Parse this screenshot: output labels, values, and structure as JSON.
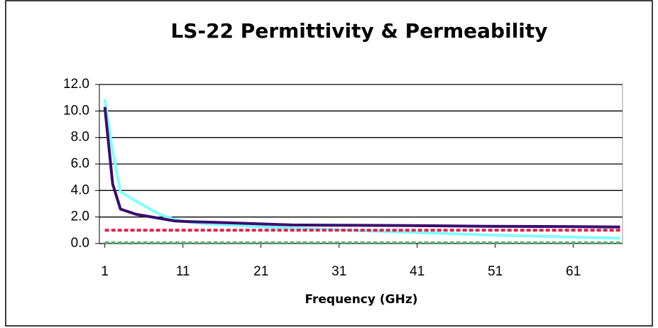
{
  "chart_data": {
    "type": "line",
    "title": "LS-22 Permittivity & Permeability",
    "x_label": "Frequency (GHz)",
    "x": [
      1,
      2,
      3,
      5,
      8,
      10,
      12,
      15,
      20,
      25,
      30,
      40,
      50,
      60,
      67
    ],
    "series": [
      {
        "color": "#80ffff",
        "style": "solid",
        "values": [
          10.9,
          7.0,
          3.9,
          3.2,
          2.2,
          1.8,
          1.6,
          1.45,
          1.3,
          1.15,
          1.05,
          0.85,
          0.65,
          0.5,
          0.4
        ]
      },
      {
        "color": "#3a0d6e",
        "style": "solid",
        "values": [
          10.3,
          4.5,
          2.6,
          2.2,
          1.9,
          1.7,
          1.65,
          1.6,
          1.5,
          1.4,
          1.38,
          1.35,
          1.3,
          1.28,
          1.25
        ]
      },
      {
        "color": "#e0204a",
        "style": "dashed",
        "values": [
          1.0,
          1.0,
          1.0,
          1.0,
          1.0,
          1.0,
          1.0,
          1.0,
          1.0,
          1.0,
          1.0,
          1.0,
          1.0,
          1.0,
          1.0
        ]
      },
      {
        "color": "#5aa870",
        "style": "dashed",
        "values": [
          0.05,
          0.05,
          0.05,
          0.05,
          0.05,
          0.05,
          0.05,
          0.05,
          0.05,
          0.05,
          0.05,
          0.05,
          0.05,
          0.05,
          0.05
        ]
      }
    ],
    "xlim": [
      0.3,
      67.3
    ],
    "xticks": [
      1,
      11,
      21,
      31,
      41,
      51,
      61
    ],
    "ylim": [
      0,
      12
    ],
    "yticks": [
      {
        "value": 0,
        "label": "0.0"
      },
      {
        "value": 2,
        "label": "2.0"
      },
      {
        "value": 4,
        "label": "4.0"
      },
      {
        "value": 6,
        "label": "6.0"
      },
      {
        "value": 8,
        "label": "8.0"
      },
      {
        "value": 10,
        "label": "10.0"
      },
      {
        "value": 12,
        "label": "12.0"
      }
    ],
    "grid": true
  }
}
